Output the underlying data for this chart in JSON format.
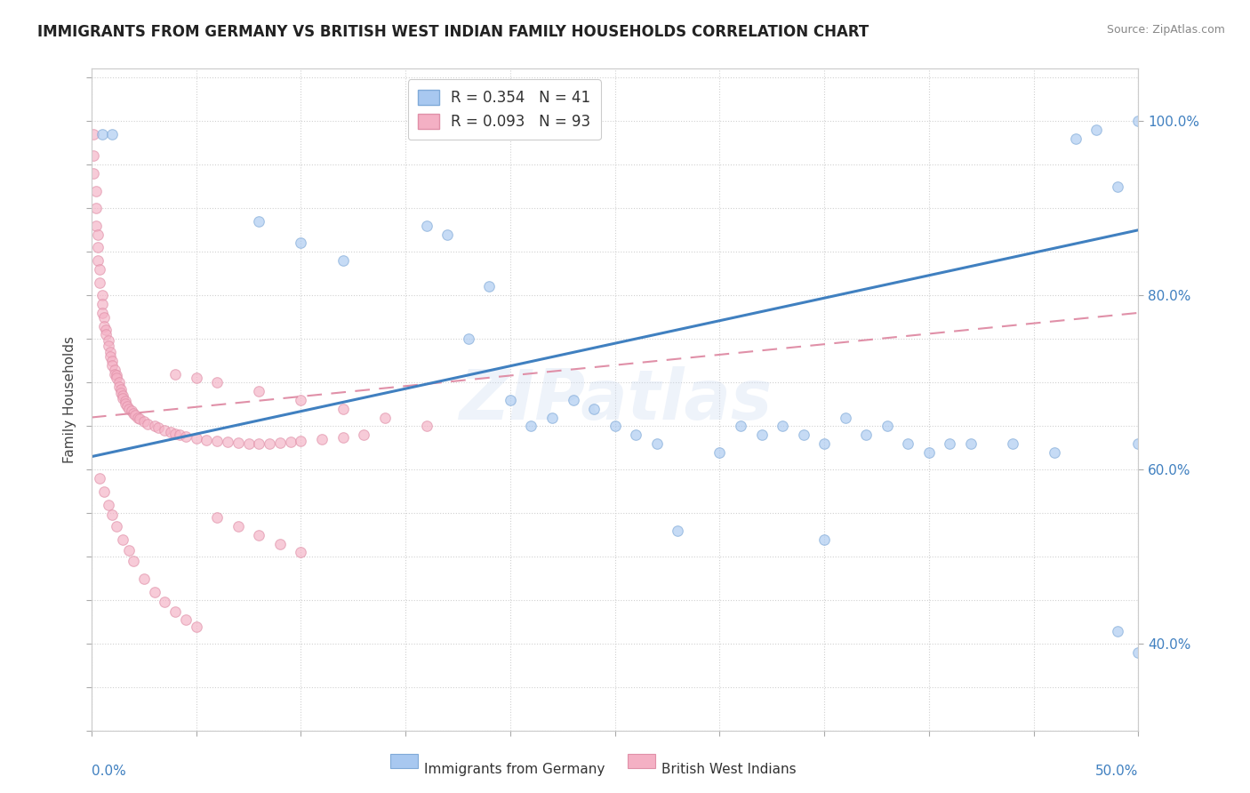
{
  "title": "IMMIGRANTS FROM GERMANY VS BRITISH WEST INDIAN FAMILY HOUSEHOLDS CORRELATION CHART",
  "source": "Source: ZipAtlas.com",
  "ylabel": "Family Households",
  "right_yticks": [
    "40.0%",
    "60.0%",
    "80.0%",
    "100.0%"
  ],
  "right_ytick_vals": [
    0.4,
    0.6,
    0.8,
    1.0
  ],
  "legend_entry_blue": "R = 0.354   N = 41",
  "legend_entry_pink": "R = 0.093   N = 93",
  "bottom_label_blue": "Immigrants from Germany",
  "bottom_label_pink": "British West Indians",
  "watermark": "ZIPatlas",
  "blue_scatter_x": [
    0.005,
    0.01,
    0.08,
    0.1,
    0.12,
    0.16,
    0.17,
    0.18,
    0.19,
    0.2,
    0.21,
    0.22,
    0.23,
    0.24,
    0.25,
    0.26,
    0.27,
    0.28,
    0.3,
    0.31,
    0.32,
    0.33,
    0.34,
    0.35,
    0.36,
    0.37,
    0.38,
    0.39,
    0.4,
    0.41,
    0.42,
    0.44,
    0.46,
    0.47,
    0.48,
    0.49,
    0.5,
    0.5,
    0.5,
    0.49,
    0.35
  ],
  "blue_scatter_y": [
    0.985,
    0.985,
    0.885,
    0.86,
    0.84,
    0.88,
    0.87,
    0.75,
    0.81,
    0.68,
    0.65,
    0.66,
    0.68,
    0.67,
    0.65,
    0.64,
    0.63,
    0.53,
    0.62,
    0.65,
    0.64,
    0.65,
    0.64,
    0.63,
    0.66,
    0.64,
    0.65,
    0.63,
    0.62,
    0.63,
    0.63,
    0.63,
    0.62,
    0.98,
    0.99,
    0.925,
    1.0,
    0.63,
    0.39,
    0.415,
    0.52
  ],
  "pink_scatter_x": [
    0.001,
    0.001,
    0.001,
    0.002,
    0.002,
    0.002,
    0.003,
    0.003,
    0.003,
    0.004,
    0.004,
    0.005,
    0.005,
    0.005,
    0.006,
    0.006,
    0.007,
    0.007,
    0.008,
    0.008,
    0.009,
    0.009,
    0.01,
    0.01,
    0.011,
    0.011,
    0.012,
    0.012,
    0.013,
    0.013,
    0.014,
    0.014,
    0.015,
    0.015,
    0.016,
    0.016,
    0.017,
    0.018,
    0.019,
    0.02,
    0.021,
    0.022,
    0.023,
    0.025,
    0.027,
    0.03,
    0.032,
    0.035,
    0.038,
    0.04,
    0.042,
    0.045,
    0.05,
    0.055,
    0.06,
    0.065,
    0.07,
    0.075,
    0.08,
    0.085,
    0.09,
    0.095,
    0.1,
    0.11,
    0.12,
    0.13,
    0.004,
    0.006,
    0.008,
    0.01,
    0.012,
    0.015,
    0.018,
    0.02,
    0.025,
    0.03,
    0.035,
    0.04,
    0.045,
    0.05,
    0.06,
    0.07,
    0.08,
    0.09,
    0.1,
    0.04,
    0.05,
    0.06,
    0.08,
    0.1,
    0.12,
    0.14,
    0.16
  ],
  "pink_scatter_y": [
    0.985,
    0.96,
    0.94,
    0.92,
    0.9,
    0.88,
    0.87,
    0.855,
    0.84,
    0.83,
    0.815,
    0.8,
    0.79,
    0.78,
    0.775,
    0.765,
    0.76,
    0.755,
    0.748,
    0.742,
    0.735,
    0.73,
    0.725,
    0.72,
    0.715,
    0.71,
    0.708,
    0.705,
    0.7,
    0.695,
    0.692,
    0.688,
    0.685,
    0.682,
    0.679,
    0.676,
    0.673,
    0.67,
    0.668,
    0.665,
    0.663,
    0.66,
    0.658,
    0.655,
    0.652,
    0.65,
    0.648,
    0.645,
    0.643,
    0.641,
    0.64,
    0.638,
    0.636,
    0.634,
    0.633,
    0.632,
    0.631,
    0.63,
    0.63,
    0.63,
    0.631,
    0.632,
    0.633,
    0.635,
    0.637,
    0.64,
    0.59,
    0.575,
    0.56,
    0.548,
    0.535,
    0.52,
    0.507,
    0.495,
    0.475,
    0.46,
    0.448,
    0.437,
    0.428,
    0.42,
    0.545,
    0.535,
    0.525,
    0.515,
    0.505,
    0.71,
    0.705,
    0.7,
    0.69,
    0.68,
    0.67,
    0.66,
    0.65
  ],
  "blue_line_x": [
    0.0,
    0.5
  ],
  "blue_line_y": [
    0.615,
    0.875
  ],
  "pink_line_x": [
    0.0,
    0.5
  ],
  "pink_line_y": [
    0.66,
    0.78
  ],
  "xlim": [
    0.0,
    0.5
  ],
  "ylim": [
    0.3,
    1.06
  ],
  "background_color": "#ffffff",
  "scatter_alpha": 0.65,
  "scatter_size": 70,
  "blue_color": "#a8c8f0",
  "blue_edge": "#80aad8",
  "pink_color": "#f4b0c4",
  "pink_edge": "#e090a8",
  "blue_line_color": "#4080c0",
  "pink_line_color": "#e090a8"
}
